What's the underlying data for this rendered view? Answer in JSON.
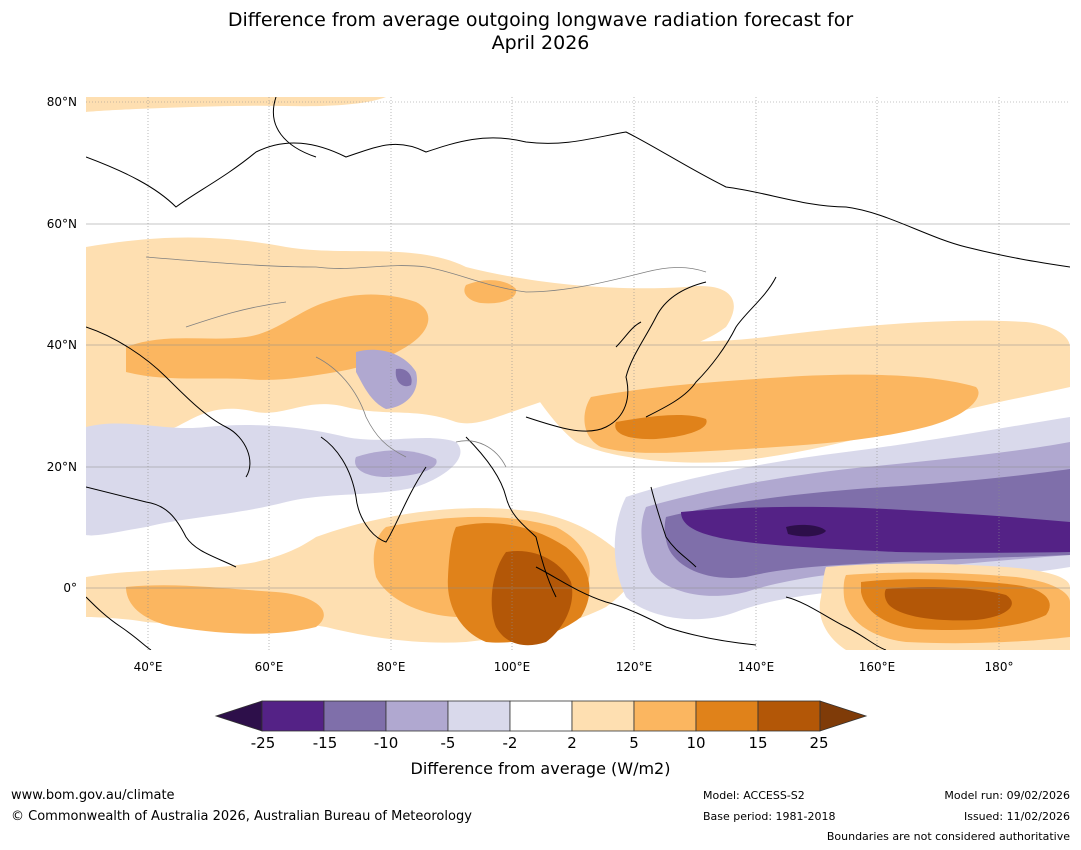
{
  "title": {
    "line1": "Difference from average outgoing longwave radiation forecast for",
    "line2": "April 2026"
  },
  "map": {
    "lat_ticks": [
      "80°N",
      "60°N",
      "40°N",
      "20°N",
      "0°"
    ],
    "lon_ticks": [
      "40°E",
      "60°E",
      "80°E",
      "100°E",
      "120°E",
      "140°E",
      "160°E",
      "180°"
    ],
    "lon_range": [
      30,
      192
    ],
    "lat_range": [
      -10,
      81
    ]
  },
  "colorbar": {
    "ticks": [
      "-25",
      "-15",
      "-10",
      "-5",
      "-2",
      "2",
      "5",
      "10",
      "15",
      "25"
    ],
    "colors": [
      "#2d0f4a",
      "#542286",
      "#7f6faa",
      "#b0a8d0",
      "#d9d9eb",
      "#ffffff",
      "#fedfb1",
      "#fbb660",
      "#e0821a",
      "#b35707",
      "#7f3b08"
    ],
    "label": "Difference from average (W/m2)"
  },
  "footer": {
    "url": "www.bom.gov.au/climate",
    "copyright": "© Commonwealth of Australia 2026, Australian Bureau of Meteorology",
    "model": "Model: ACCESS-S2",
    "base_period": "Base period: 1981-2018",
    "model_run": "Model run: 09/02/2026",
    "issued": "Issued: 11/02/2026",
    "disclaimer": "Boundaries are not considered authoritative"
  }
}
